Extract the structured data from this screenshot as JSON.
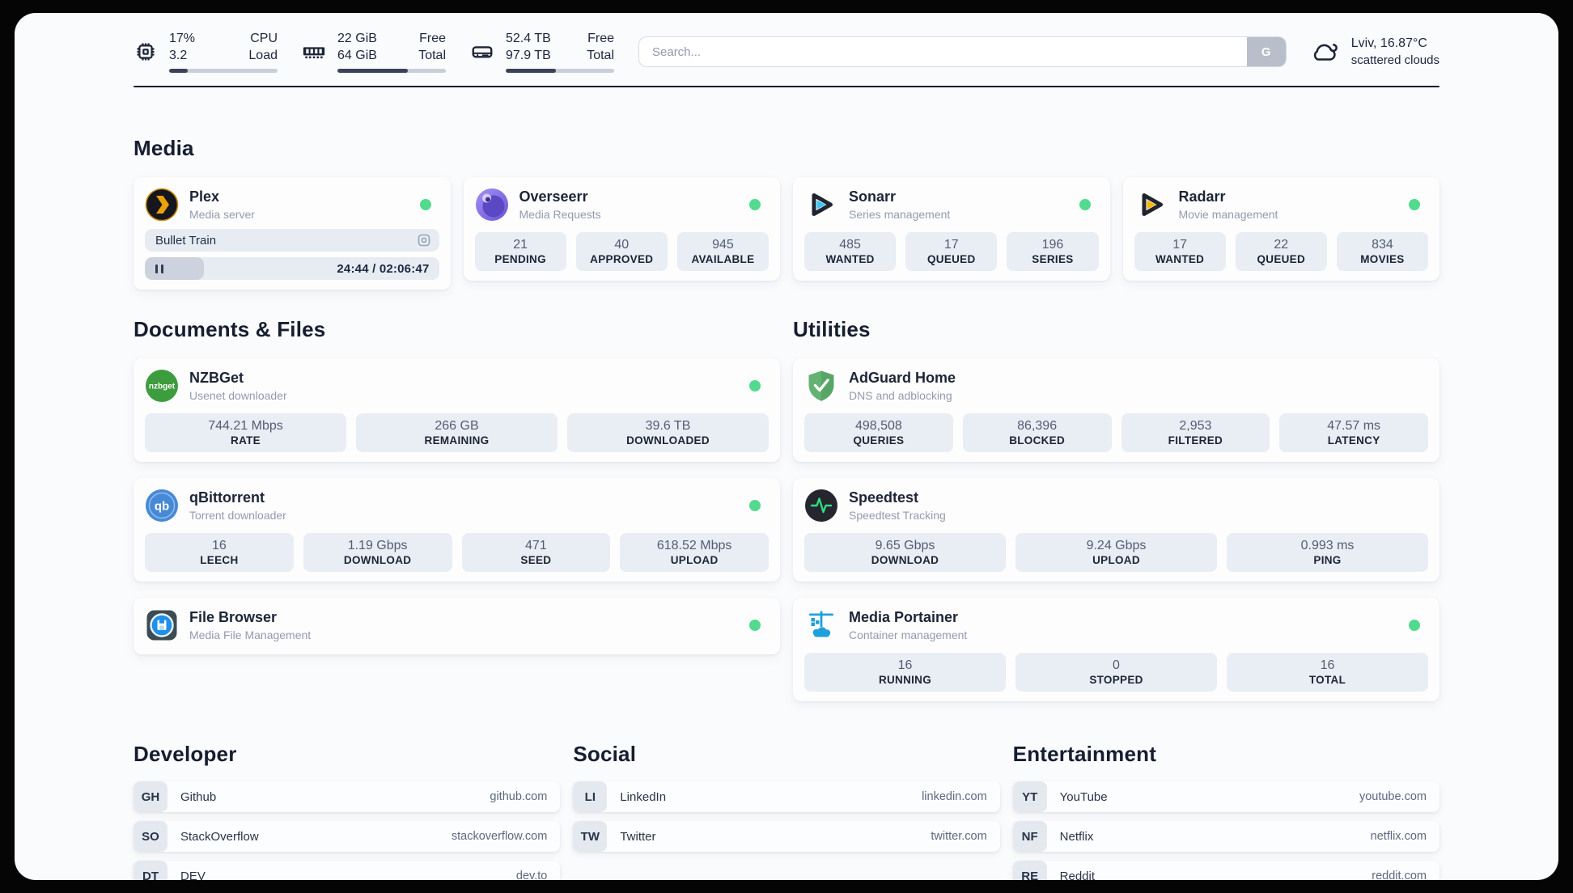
{
  "colors": {
    "status_online": "#53da8e",
    "progress_fill": "#39425a",
    "tile_bg": "#e9edf4"
  },
  "topbar": {
    "monitors": [
      {
        "name": "cpu",
        "value_top": "17%",
        "label_top": "CPU",
        "value_bottom": "3.2",
        "label_bottom": "Load",
        "progress_pct": 17
      },
      {
        "name": "memory",
        "value_top": "22 GiB",
        "label_top": "Free",
        "value_bottom": "64 GiB",
        "label_bottom": "Total",
        "progress_pct": 65
      },
      {
        "name": "disk",
        "value_top": "52.4 TB",
        "label_top": "Free",
        "value_bottom": "97.9 TB",
        "label_bottom": "Total",
        "progress_pct": 46
      }
    ],
    "search": {
      "placeholder": "Search...",
      "button": "G"
    },
    "weather": {
      "summary": "Lviv, 16.87°C",
      "detail": "scattered clouds"
    }
  },
  "sections": {
    "media": {
      "title": "Media",
      "apps": [
        {
          "name": "Plex",
          "subtitle": "Media server",
          "online": true,
          "now_playing": {
            "title": "Bullet Train",
            "time_display": "24:44 / 02:06:47",
            "progress_pct": 20
          }
        },
        {
          "name": "Overseerr",
          "subtitle": "Media Requests",
          "online": true,
          "stats": [
            {
              "value": "21",
              "label": "PENDING"
            },
            {
              "value": "40",
              "label": "APPROVED"
            },
            {
              "value": "945",
              "label": "AVAILABLE"
            }
          ]
        },
        {
          "name": "Sonarr",
          "subtitle": "Series management",
          "online": true,
          "stats": [
            {
              "value": "485",
              "label": "WANTED"
            },
            {
              "value": "17",
              "label": "QUEUED"
            },
            {
              "value": "196",
              "label": "SERIES"
            }
          ]
        },
        {
          "name": "Radarr",
          "subtitle": "Movie management",
          "online": true,
          "stats": [
            {
              "value": "17",
              "label": "WANTED"
            },
            {
              "value": "22",
              "label": "QUEUED"
            },
            {
              "value": "834",
              "label": "MOVIES"
            }
          ]
        }
      ]
    },
    "documents": {
      "title": "Documents & Files",
      "apps": [
        {
          "name": "NZBGet",
          "subtitle": "Usenet downloader",
          "online": true,
          "stats": [
            {
              "value": "744.21 Mbps",
              "label": "RATE"
            },
            {
              "value": "266 GB",
              "label": "REMAINING"
            },
            {
              "value": "39.6 TB",
              "label": "DOWNLOADED"
            }
          ]
        },
        {
          "name": "qBittorrent",
          "subtitle": "Torrent downloader",
          "online": true,
          "stats": [
            {
              "value": "16",
              "label": "LEECH"
            },
            {
              "value": "1.19 Gbps",
              "label": "DOWNLOAD"
            },
            {
              "value": "471",
              "label": "SEED"
            },
            {
              "value": "618.52 Mbps",
              "label": "UPLOAD"
            }
          ]
        },
        {
          "name": "File Browser",
          "subtitle": "Media File Management",
          "online": true,
          "stats": []
        }
      ]
    },
    "utilities": {
      "title": "Utilities",
      "apps": [
        {
          "name": "AdGuard Home",
          "subtitle": "DNS and adblocking",
          "online": false,
          "stats": [
            {
              "value": "498,508",
              "label": "QUERIES"
            },
            {
              "value": "86,396",
              "label": "BLOCKED"
            },
            {
              "value": "2,953",
              "label": "FILTERED"
            },
            {
              "value": "47.57 ms",
              "label": "LATENCY"
            }
          ]
        },
        {
          "name": "Speedtest",
          "subtitle": "Speedtest Tracking",
          "online": false,
          "stats": [
            {
              "value": "9.65 Gbps",
              "label": "DOWNLOAD"
            },
            {
              "value": "9.24 Gbps",
              "label": "UPLOAD"
            },
            {
              "value": "0.993 ms",
              "label": "PING"
            }
          ]
        },
        {
          "name": "Media Portainer",
          "subtitle": "Container management",
          "online": true,
          "stats": [
            {
              "value": "16",
              "label": "RUNNING"
            },
            {
              "value": "0",
              "label": "STOPPED"
            },
            {
              "value": "16",
              "label": "TOTAL"
            }
          ]
        }
      ]
    },
    "developer": {
      "title": "Developer",
      "links": [
        {
          "abbr": "GH",
          "name": "Github",
          "url": "github.com"
        },
        {
          "abbr": "SO",
          "name": "StackOverflow",
          "url": "stackoverflow.com"
        },
        {
          "abbr": "DT",
          "name": "DEV",
          "url": "dev.to"
        }
      ]
    },
    "social": {
      "title": "Social",
      "links": [
        {
          "abbr": "LI",
          "name": "LinkedIn",
          "url": "linkedin.com"
        },
        {
          "abbr": "TW",
          "name": "Twitter",
          "url": "twitter.com"
        }
      ]
    },
    "entertainment": {
      "title": "Entertainment",
      "links": [
        {
          "abbr": "YT",
          "name": "YouTube",
          "url": "youtube.com"
        },
        {
          "abbr": "NF",
          "name": "Netflix",
          "url": "netflix.com"
        },
        {
          "abbr": "RE",
          "name": "Reddit",
          "url": "reddit.com"
        }
      ]
    }
  }
}
